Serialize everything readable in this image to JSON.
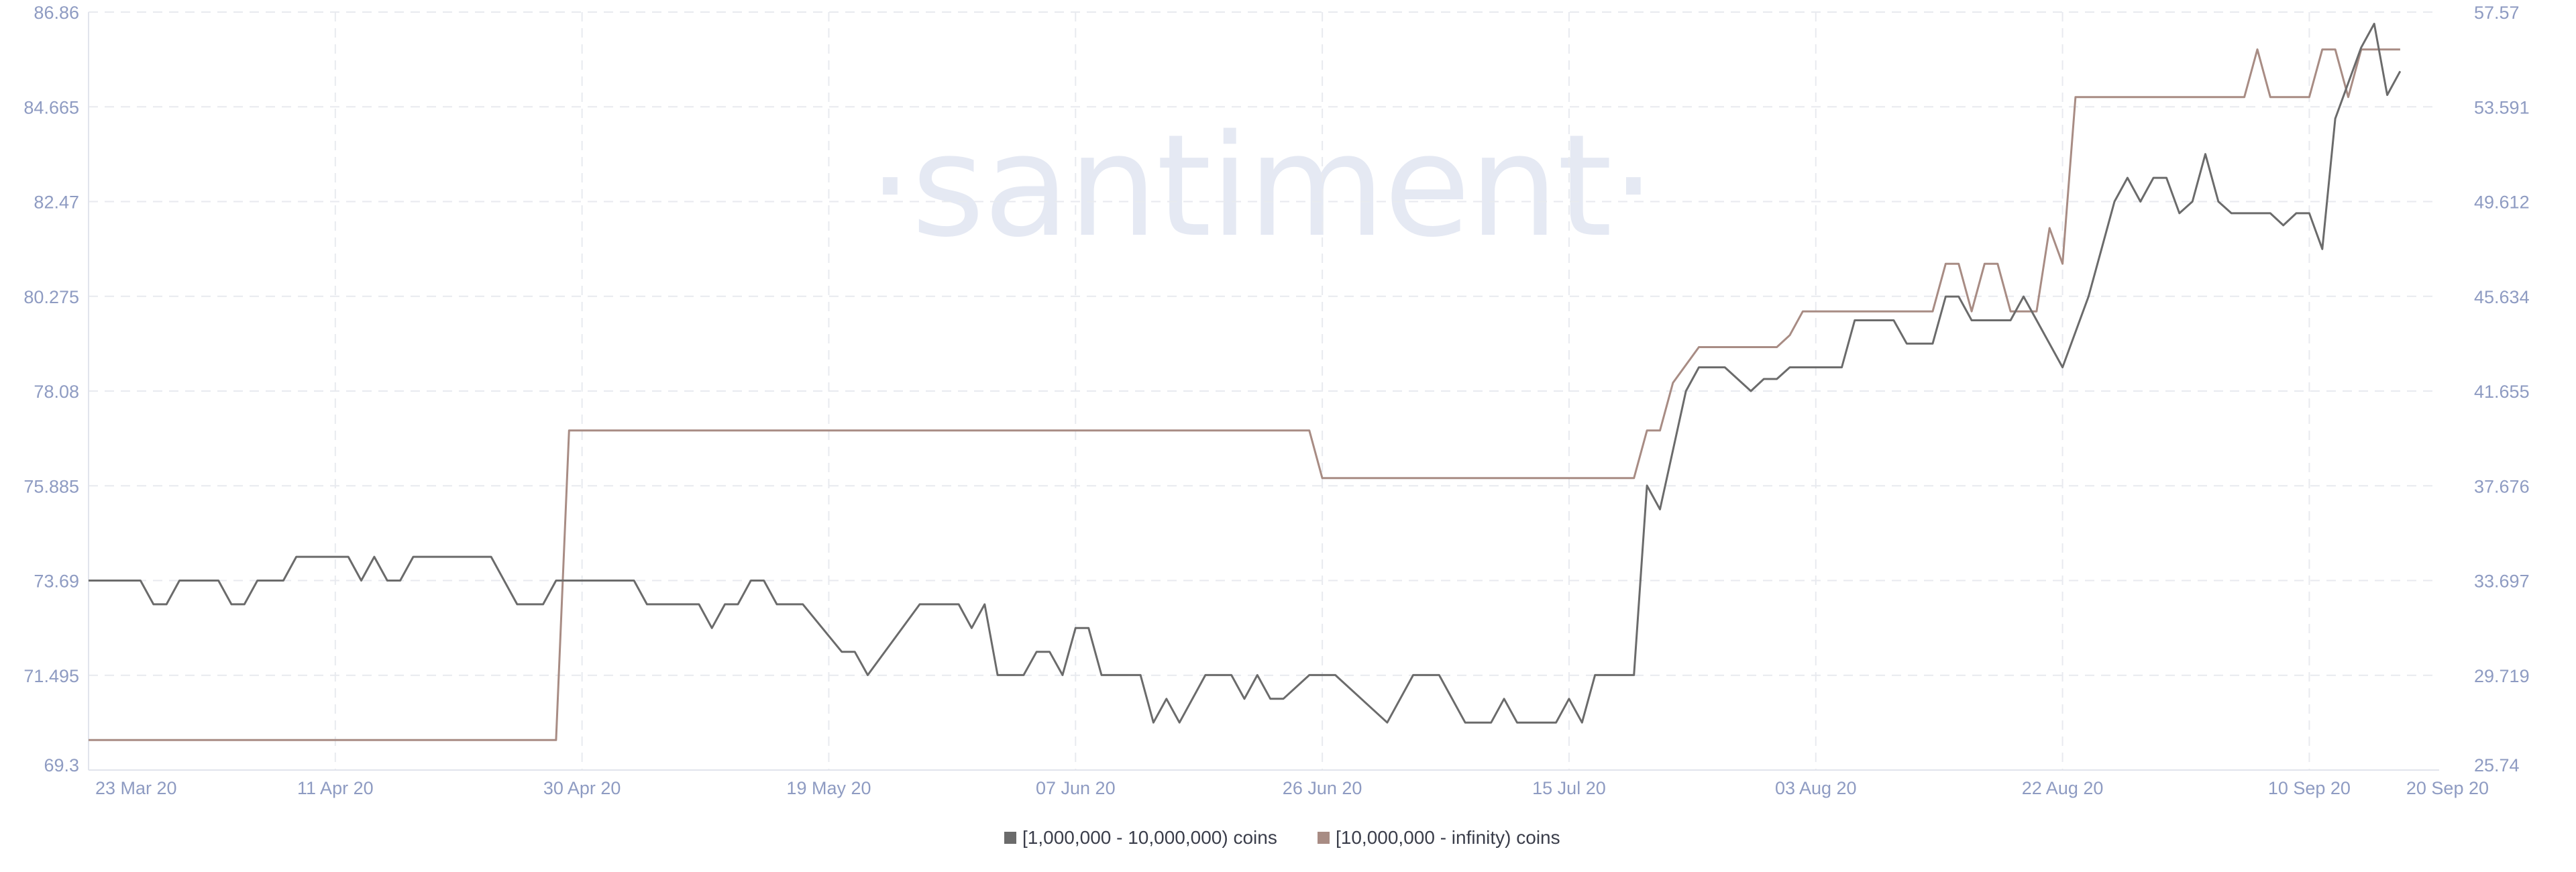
{
  "watermark": "·santiment·",
  "colors": {
    "series_1": "#6b6b6b",
    "series_2": "#a88c84",
    "tick_text": "#8e9bc2",
    "grid": "#e8eaef",
    "watermark": "#e5e9f3"
  },
  "chart_data": {
    "type": "line",
    "title": "",
    "grid": true,
    "legend_position": "bottom-center",
    "x_range": [
      "2020-03-23",
      "2020-09-20"
    ],
    "x_ticks": [
      "23 Mar 20",
      "11 Apr 20",
      "30 Apr 20",
      "19 May 20",
      "07 Jun 20",
      "26 Jun 20",
      "15 Jul 20",
      "03 Aug 20",
      "22 Aug 20",
      "10 Sep 20",
      "20 Sep 20"
    ],
    "y_left": {
      "ticks": [
        "69.3",
        "71.495",
        "73.69",
        "75.885",
        "78.08",
        "80.275",
        "82.47",
        "84.665",
        "86.86"
      ],
      "range": [
        69.3,
        86.86
      ]
    },
    "y_right": {
      "ticks": [
        "25.74",
        "29.719",
        "33.697",
        "37.676",
        "41.655",
        "45.634",
        "49.612",
        "53.591",
        "57.57"
      ],
      "range": [
        25.74,
        57.57
      ]
    },
    "series": [
      {
        "name": "[1,000,000 - 10,000,000) coins",
        "axis": "left",
        "points": [
          [
            "2020-03-23",
            73.69
          ],
          [
            "2020-03-27",
            73.69
          ],
          [
            "2020-03-28",
            73.14
          ],
          [
            "2020-03-29",
            73.14
          ],
          [
            "2020-03-30",
            73.69
          ],
          [
            "2020-04-02",
            73.69
          ],
          [
            "2020-04-03",
            73.14
          ],
          [
            "2020-04-04",
            73.14
          ],
          [
            "2020-04-05",
            73.69
          ],
          [
            "2020-04-07",
            73.69
          ],
          [
            "2020-04-08",
            74.24
          ],
          [
            "2020-04-12",
            74.24
          ],
          [
            "2020-04-13",
            73.69
          ],
          [
            "2020-04-14",
            74.24
          ],
          [
            "2020-04-15",
            73.69
          ],
          [
            "2020-04-16",
            73.69
          ],
          [
            "2020-04-17",
            74.24
          ],
          [
            "2020-04-23",
            74.24
          ],
          [
            "2020-04-25",
            73.14
          ],
          [
            "2020-04-27",
            73.14
          ],
          [
            "2020-04-28",
            73.69
          ],
          [
            "2020-05-04",
            73.69
          ],
          [
            "2020-05-05",
            73.14
          ],
          [
            "2020-05-09",
            73.14
          ],
          [
            "2020-05-10",
            72.59
          ],
          [
            "2020-05-11",
            73.14
          ],
          [
            "2020-05-12",
            73.14
          ],
          [
            "2020-05-13",
            73.69
          ],
          [
            "2020-05-14",
            73.69
          ],
          [
            "2020-05-15",
            73.14
          ],
          [
            "2020-05-17",
            73.14
          ],
          [
            "2020-05-20",
            72.04
          ],
          [
            "2020-05-21",
            72.04
          ],
          [
            "2020-05-22",
            71.5
          ],
          [
            "2020-05-26",
            73.14
          ],
          [
            "2020-05-29",
            73.14
          ],
          [
            "2020-05-30",
            72.59
          ],
          [
            "2020-05-31",
            73.14
          ],
          [
            "2020-06-01",
            71.5
          ],
          [
            "2020-06-03",
            71.5
          ],
          [
            "2020-06-04",
            72.04
          ],
          [
            "2020-06-05",
            72.04
          ],
          [
            "2020-06-06",
            71.5
          ],
          [
            "2020-06-07",
            72.59
          ],
          [
            "2020-06-08",
            72.59
          ],
          [
            "2020-06-09",
            71.5
          ],
          [
            "2020-06-12",
            71.5
          ],
          [
            "2020-06-13",
            70.4
          ],
          [
            "2020-06-14",
            70.95
          ],
          [
            "2020-06-15",
            70.4
          ],
          [
            "2020-06-17",
            71.5
          ],
          [
            "2020-06-19",
            71.5
          ],
          [
            "2020-06-20",
            70.95
          ],
          [
            "2020-06-21",
            71.5
          ],
          [
            "2020-06-22",
            70.95
          ],
          [
            "2020-06-23",
            70.95
          ],
          [
            "2020-06-25",
            71.5
          ],
          [
            "2020-06-27",
            71.5
          ],
          [
            "2020-07-01",
            70.4
          ],
          [
            "2020-07-03",
            71.5
          ],
          [
            "2020-07-05",
            71.5
          ],
          [
            "2020-07-07",
            70.4
          ],
          [
            "2020-07-09",
            70.4
          ],
          [
            "2020-07-10",
            70.95
          ],
          [
            "2020-07-11",
            70.4
          ],
          [
            "2020-07-14",
            70.4
          ],
          [
            "2020-07-15",
            70.95
          ],
          [
            "2020-07-16",
            70.4
          ],
          [
            "2020-07-17",
            71.5
          ],
          [
            "2020-07-18",
            71.5
          ],
          [
            "2020-07-19",
            71.5
          ],
          [
            "2020-07-20",
            71.5
          ],
          [
            "2020-07-21",
            75.89
          ],
          [
            "2020-07-22",
            75.34
          ],
          [
            "2020-07-24",
            78.08
          ],
          [
            "2020-07-25",
            78.63
          ],
          [
            "2020-07-27",
            78.63
          ],
          [
            "2020-07-29",
            78.08
          ],
          [
            "2020-07-30",
            78.36
          ],
          [
            "2020-07-31",
            78.36
          ],
          [
            "2020-08-01",
            78.63
          ],
          [
            "2020-08-05",
            78.63
          ],
          [
            "2020-08-06",
            79.72
          ],
          [
            "2020-08-09",
            79.72
          ],
          [
            "2020-08-10",
            79.18
          ],
          [
            "2020-08-12",
            79.18
          ],
          [
            "2020-08-13",
            80.27
          ],
          [
            "2020-08-14",
            80.27
          ],
          [
            "2020-08-15",
            79.72
          ],
          [
            "2020-08-18",
            79.72
          ],
          [
            "2020-08-19",
            80.27
          ],
          [
            "2020-08-22",
            78.63
          ],
          [
            "2020-08-24",
            80.27
          ],
          [
            "2020-08-25",
            81.37
          ],
          [
            "2020-08-26",
            82.47
          ],
          [
            "2020-08-27",
            83.02
          ],
          [
            "2020-08-28",
            82.47
          ],
          [
            "2020-08-29",
            83.02
          ],
          [
            "2020-08-30",
            83.02
          ],
          [
            "2020-08-31",
            82.2
          ],
          [
            "2020-09-01",
            82.47
          ],
          [
            "2020-09-02",
            83.57
          ],
          [
            "2020-09-03",
            82.47
          ],
          [
            "2020-09-04",
            82.2
          ],
          [
            "2020-09-07",
            82.2
          ],
          [
            "2020-09-08",
            81.92
          ],
          [
            "2020-09-09",
            82.2
          ],
          [
            "2020-09-10",
            82.2
          ],
          [
            "2020-09-11",
            81.37
          ],
          [
            "2020-09-12",
            84.39
          ],
          [
            "2020-09-14",
            86.04
          ],
          [
            "2020-09-15",
            86.59
          ],
          [
            "2020-09-16",
            84.94
          ],
          [
            "2020-09-17",
            85.49
          ]
        ]
      },
      {
        "name": "[10,000,000 - infinity) coins",
        "axis": "right",
        "points": [
          [
            "2020-03-23",
            27.0
          ],
          [
            "2020-04-28",
            27.0
          ],
          [
            "2020-04-29",
            40.0
          ],
          [
            "2020-06-25",
            40.0
          ],
          [
            "2020-06-26",
            38.0
          ],
          [
            "2020-07-20",
            38.0
          ],
          [
            "2020-07-21",
            40.0
          ],
          [
            "2020-07-22",
            40.0
          ],
          [
            "2020-07-23",
            42.0
          ],
          [
            "2020-07-25",
            43.5
          ],
          [
            "2020-07-31",
            43.5
          ],
          [
            "2020-08-01",
            44.0
          ],
          [
            "2020-08-02",
            45.0
          ],
          [
            "2020-08-12",
            45.0
          ],
          [
            "2020-08-13",
            47.0
          ],
          [
            "2020-08-14",
            47.0
          ],
          [
            "2020-08-15",
            45.0
          ],
          [
            "2020-08-16",
            47.0
          ],
          [
            "2020-08-17",
            47.0
          ],
          [
            "2020-08-18",
            45.0
          ],
          [
            "2020-08-20",
            45.0
          ],
          [
            "2020-08-21",
            48.5
          ],
          [
            "2020-08-22",
            47.0
          ],
          [
            "2020-08-23",
            54.0
          ],
          [
            "2020-09-05",
            54.0
          ],
          [
            "2020-09-06",
            56.0
          ],
          [
            "2020-09-07",
            54.0
          ],
          [
            "2020-09-10",
            54.0
          ],
          [
            "2020-09-11",
            56.0
          ],
          [
            "2020-09-12",
            56.0
          ],
          [
            "2020-09-13",
            54.0
          ],
          [
            "2020-09-14",
            56.0
          ],
          [
            "2020-09-17",
            56.0
          ]
        ]
      }
    ]
  }
}
